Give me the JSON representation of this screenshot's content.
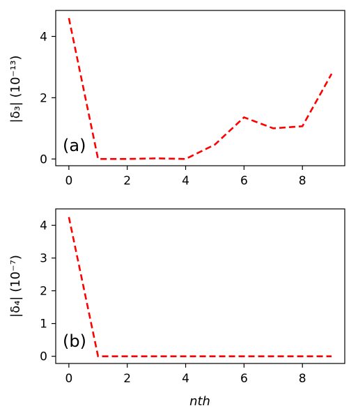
{
  "chart_data": [
    {
      "type": "line",
      "panel_label": "(a)",
      "ylabel": "|δ₃| (10⁻¹³)",
      "xlabel": "",
      "x": [
        0,
        1,
        2,
        3,
        4,
        5,
        6,
        7,
        8,
        9
      ],
      "xlim": [
        -0.45,
        9.45
      ],
      "ylim": [
        -0.22,
        4.85
      ],
      "xticks": [
        0,
        2,
        4,
        6,
        8
      ],
      "xtick_labels": [
        "0",
        "2",
        "4",
        "6",
        "8"
      ],
      "yticks": [
        0,
        2,
        4
      ],
      "ytick_labels": [
        "0",
        "2",
        "4"
      ],
      "grid": false,
      "series": [
        {
          "color": "#ff0000",
          "style": "dashed",
          "values": [
            4.6,
            0.0,
            0.0,
            0.02,
            0.0,
            0.47,
            1.36,
            1.0,
            1.07,
            2.78
          ]
        }
      ]
    },
    {
      "type": "line",
      "panel_label": "(b)",
      "ylabel": "|δ₄| (10⁻⁷)",
      "xlabel": "nth",
      "x": [
        0,
        1,
        2,
        3,
        4,
        5,
        6,
        7,
        8,
        9
      ],
      "xlim": [
        -0.45,
        9.45
      ],
      "ylim": [
        -0.22,
        4.5
      ],
      "xticks": [
        0,
        2,
        4,
        6,
        8
      ],
      "xtick_labels": [
        "0",
        "2",
        "4",
        "6",
        "8"
      ],
      "yticks": [
        0,
        1,
        2,
        3,
        4
      ],
      "ytick_labels": [
        "0",
        "1",
        "2",
        "3",
        "4"
      ],
      "grid": false,
      "series": [
        {
          "color": "#ff0000",
          "style": "dashed",
          "values": [
            4.25,
            0.0,
            0.0,
            0.0,
            0.0,
            0.0,
            0.0,
            0.0,
            0.0,
            0.0
          ]
        }
      ]
    }
  ]
}
